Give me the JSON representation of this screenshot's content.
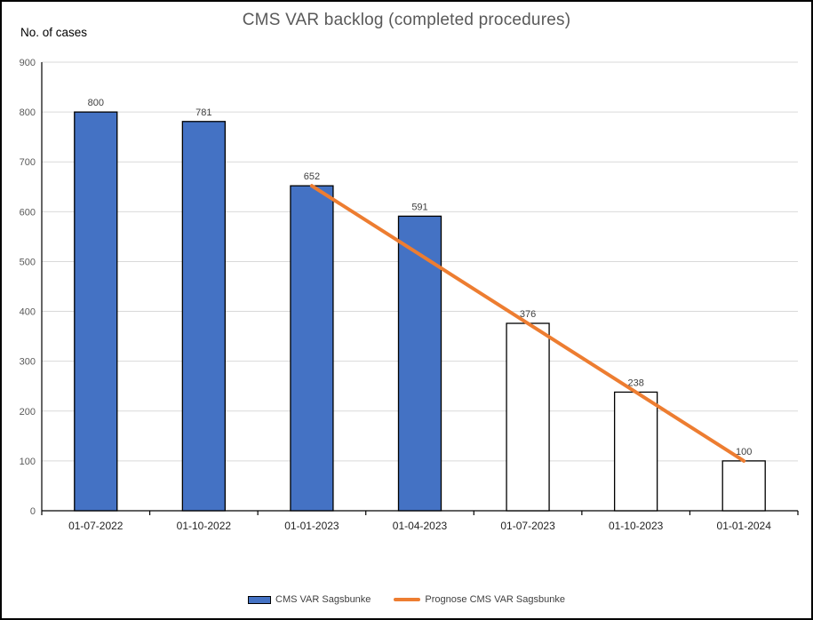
{
  "chart_data": {
    "type": "bar+line",
    "title": "CMS VAR backlog (completed procedures)",
    "ylabel": "No. of cases",
    "categories": [
      "01-07-2022",
      "01-10-2022",
      "01-01-2023",
      "01-04-2023",
      "01-07-2023",
      "01-10-2023",
      "01-01-2024"
    ],
    "series": [
      {
        "name": "CMS VAR Sagsbunke",
        "type": "bar",
        "values": [
          800,
          781,
          652,
          591,
          376,
          238,
          100
        ],
        "filled": [
          true,
          true,
          true,
          true,
          false,
          false,
          false
        ],
        "fill_color": "#4472C4",
        "empty_fill_color": "#FFFFFF",
        "outline_color": "#000000"
      },
      {
        "name": "Prognose CMS VAR Sagsbunke",
        "type": "line",
        "values": [
          null,
          null,
          652,
          514,
          376,
          238,
          100
        ],
        "color": "#ED7D31"
      }
    ],
    "data_labels": [
      "800",
      "781",
      "652",
      "591",
      "376",
      "238",
      "100"
    ],
    "ylim": [
      0,
      900
    ],
    "ytick_step": 100,
    "grid": true,
    "legend_position": "bottom",
    "colors": {
      "title": "#595959",
      "axis_line": "#000000",
      "gridline": "#D9D9D9",
      "ytick_label": "#595959",
      "xtick_label": "#1f1f1f",
      "data_label": "#404040",
      "legend_text": "#404040"
    }
  }
}
